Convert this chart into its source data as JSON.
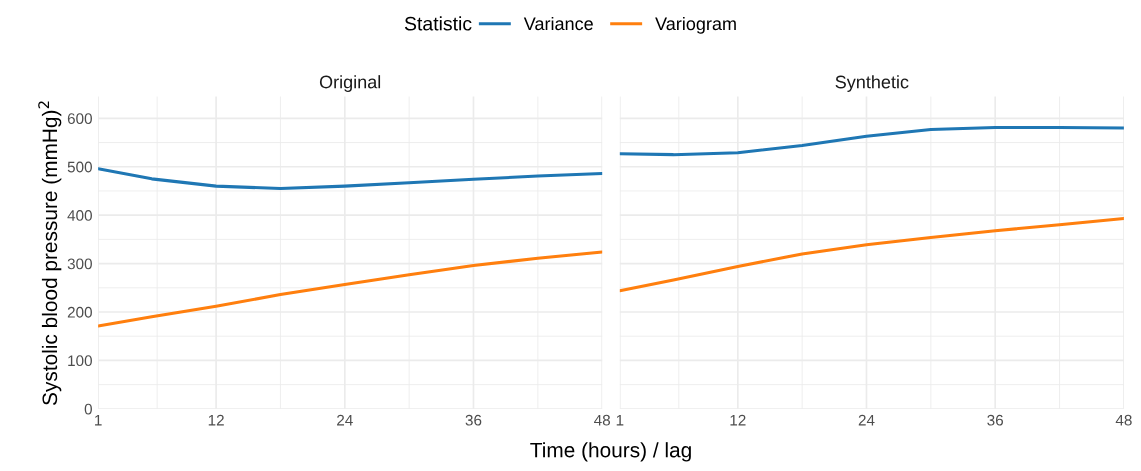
{
  "chart_data": [
    {
      "type": "line",
      "title": "Original",
      "xlabel": "Time (hours) / lag",
      "ylabel": "Systolic blood pressure (mmHg)$^{2}$",
      "legend_title": "Statistic",
      "legend": "top",
      "grid": true,
      "x": [
        1,
        6,
        12,
        18,
        24,
        30,
        36,
        42,
        48
      ],
      "xlim": [
        1,
        48
      ],
      "xticks": [
        1,
        12,
        24,
        36,
        48
      ],
      "ylim": [
        0,
        645
      ],
      "yticks": [
        0,
        100,
        200,
        300,
        400,
        500,
        600
      ],
      "series": [
        {
          "name": "Variance",
          "color": "#1f77b4",
          "values": [
            496,
            475,
            460,
            455,
            460,
            467,
            474,
            481,
            486
          ]
        },
        {
          "name": "Variogram",
          "color": "#ff7f0e",
          "values": [
            171,
            190,
            212,
            236,
            257,
            277,
            296,
            311,
            324
          ]
        }
      ]
    },
    {
      "type": "line",
      "title": "Synthetic",
      "grid": true,
      "tick_labels": "x",
      "x": [
        1,
        6,
        12,
        18,
        24,
        30,
        36,
        42,
        48
      ],
      "xlim": [
        1,
        48
      ],
      "xticks": [
        1,
        12,
        24,
        36,
        48
      ],
      "ylim": [
        0,
        645
      ],
      "yticks": [
        0,
        100,
        200,
        300,
        400,
        500,
        600
      ],
      "series": [
        {
          "name": "Variance",
          "color": "#1f77b4",
          "values": [
            527,
            525,
            529,
            544,
            563,
            577,
            581,
            581,
            580
          ]
        },
        {
          "name": "Variogram",
          "color": "#ff7f0e",
          "values": [
            244,
            266,
            294,
            320,
            339,
            354,
            368,
            380,
            393
          ]
        }
      ]
    }
  ]
}
